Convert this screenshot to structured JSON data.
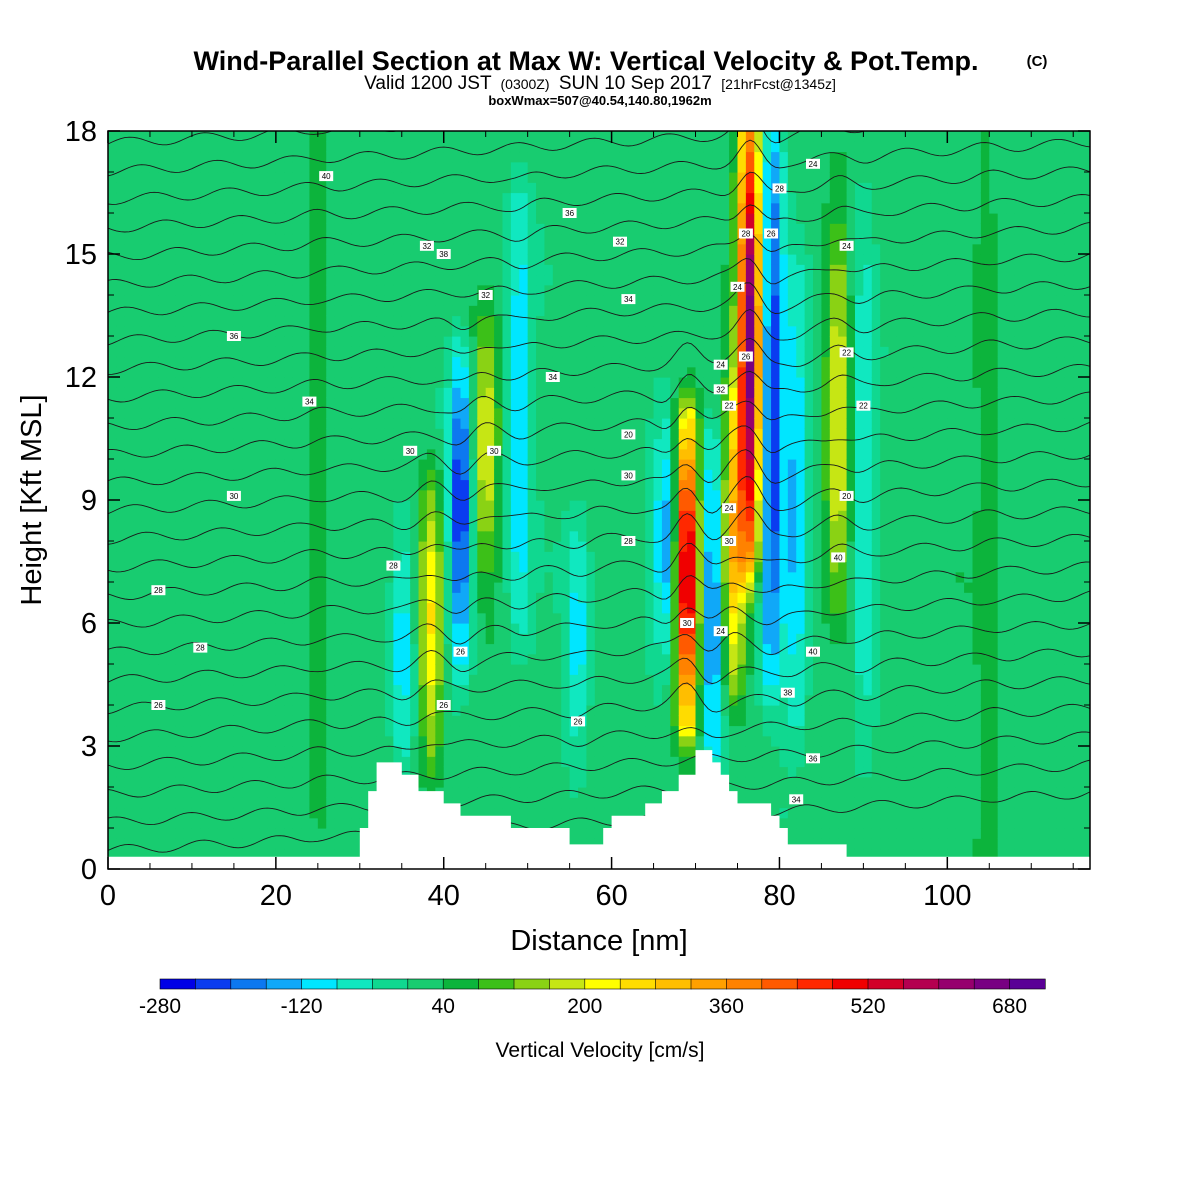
{
  "chart_data": {
    "type": "heatmap",
    "title": "Wind-Parallel Section at Max W: Vertical Velocity & Pot.Temp.",
    "title_units": "(C)",
    "subtitle_main": "Valid 1200 JST",
    "subtitle_utc": "(0300Z)",
    "subtitle_date": "SUN 10 Sep 2017",
    "subtitle_fcst": "[21hrFcst@1345z]",
    "subtitle2": "boxWmax=507@40.54,140.80,1962m",
    "xlabel": "Distance [nm]",
    "ylabel": "Height [Kft MSL]",
    "xlim": [
      0,
      117
    ],
    "ylim": [
      0,
      18
    ],
    "x_ticks": [
      0,
      20,
      40,
      60,
      80,
      100
    ],
    "y_ticks": [
      0,
      3,
      6,
      9,
      12,
      15,
      18
    ],
    "colorbar": {
      "label": "Vertical Velocity [cm/s]",
      "tick_labels": [
        "-280",
        "-120",
        "40",
        "200",
        "360",
        "520",
        "680"
      ],
      "levels": [
        -280,
        -240,
        -200,
        -160,
        -120,
        -80,
        -40,
        0,
        40,
        80,
        120,
        160,
        200,
        240,
        280,
        320,
        360,
        400,
        440,
        480,
        520,
        560,
        600,
        640,
        680,
        720
      ],
      "colors": [
        "#0000e6",
        "#0a3cf0",
        "#0d78f0",
        "#10a8f8",
        "#00e6ff",
        "#10e8c0",
        "#10d890",
        "#18cc70",
        "#0cb43c",
        "#3cc018",
        "#8ad214",
        "#c6e614",
        "#ffff00",
        "#ffdc00",
        "#ffbe00",
        "#ffa000",
        "#ff8200",
        "#ff5a00",
        "#ff2800",
        "#f00000",
        "#d20028",
        "#b40050",
        "#96006e",
        "#780082",
        "#5a0096"
      ]
    },
    "contour_labels": [
      "40",
      "38",
      "36",
      "36",
      "34",
      "34",
      "32",
      "32",
      "30",
      "30",
      "30",
      "30",
      "28",
      "28",
      "28",
      "28",
      "26",
      "26",
      "26",
      "26",
      "24",
      "24",
      "24",
      "24",
      "24",
      "22",
      "22",
      "20",
      "40",
      "40",
      "38",
      "36",
      "34",
      "34",
      "32",
      "32",
      "30",
      "30",
      "28",
      "28",
      "26",
      "26",
      "24",
      "22",
      "20"
    ],
    "background_w": 20,
    "features": [
      {
        "x": 42,
        "zmin": 5.5,
        "zmax": 12,
        "w": -260
      },
      {
        "x": 38.5,
        "zmin": 3,
        "zmax": 9,
        "w": 230
      },
      {
        "x": 45,
        "zmin": 8,
        "zmax": 12.5,
        "w": 180
      },
      {
        "x": 35,
        "zmin": 3,
        "zmax": 8,
        "w": -120
      },
      {
        "x": 49,
        "zmin": 6,
        "zmax": 16,
        "w": -140
      },
      {
        "x": 56,
        "zmin": 3,
        "zmax": 8,
        "w": -120
      },
      {
        "x": 69,
        "zmin": 4,
        "zmax": 10.5,
        "w": 560
      },
      {
        "x": 66.5,
        "zmin": 6,
        "zmax": 10,
        "w": -180
      },
      {
        "x": 72,
        "zmin": 3,
        "zmax": 10,
        "w": -220
      },
      {
        "x": 76.5,
        "zmin": 8,
        "zmax": 18,
        "w": 640
      },
      {
        "x": 74.5,
        "zmin": 5,
        "zmax": 11,
        "w": 260
      },
      {
        "x": 79,
        "zmin": 5,
        "zmax": 18,
        "w": -260
      },
      {
        "x": 82,
        "zmin": 4,
        "zmax": 14,
        "w": -140
      },
      {
        "x": 87,
        "zmin": 7,
        "zmax": 15,
        "w": 180
      },
      {
        "x": 90,
        "zmin": 3,
        "zmax": 16,
        "w": -100
      },
      {
        "x": 25,
        "zmin": 0,
        "zmax": 18,
        "w": 60
      },
      {
        "x": 105,
        "zmin": 0,
        "zmax": 18,
        "w": 50
      }
    ],
    "terrain": [
      [
        0,
        0.3
      ],
      [
        30,
        0.3
      ],
      [
        30,
        1
      ],
      [
        31,
        1
      ],
      [
        31,
        1.9
      ],
      [
        32,
        1.9
      ],
      [
        32,
        2.6
      ],
      [
        35,
        2.6
      ],
      [
        35,
        2.3
      ],
      [
        37,
        2.3
      ],
      [
        37,
        1.9
      ],
      [
        40,
        1.9
      ],
      [
        40,
        1.6
      ],
      [
        42,
        1.6
      ],
      [
        42,
        1.3
      ],
      [
        48,
        1.3
      ],
      [
        48,
        1
      ],
      [
        55,
        1
      ],
      [
        55,
        0.6
      ],
      [
        59,
        0.6
      ],
      [
        59,
        1
      ],
      [
        60,
        1
      ],
      [
        60,
        1.3
      ],
      [
        64,
        1.3
      ],
      [
        64,
        1.6
      ],
      [
        66,
        1.6
      ],
      [
        66,
        1.9
      ],
      [
        68,
        1.9
      ],
      [
        68,
        2.3
      ],
      [
        70,
        2.3
      ],
      [
        70,
        2.9
      ],
      [
        72,
        2.9
      ],
      [
        72,
        2.6
      ],
      [
        73,
        2.6
      ],
      [
        73,
        2.3
      ],
      [
        74,
        2.3
      ],
      [
        74,
        1.9
      ],
      [
        75,
        1.9
      ],
      [
        75,
        1.6
      ],
      [
        79,
        1.6
      ],
      [
        79,
        1.3
      ],
      [
        80,
        1.3
      ],
      [
        80,
        1
      ],
      [
        81,
        1
      ],
      [
        81,
        0.6
      ],
      [
        88,
        0.6
      ],
      [
        88,
        0.3
      ],
      [
        117,
        0.3
      ]
    ]
  }
}
